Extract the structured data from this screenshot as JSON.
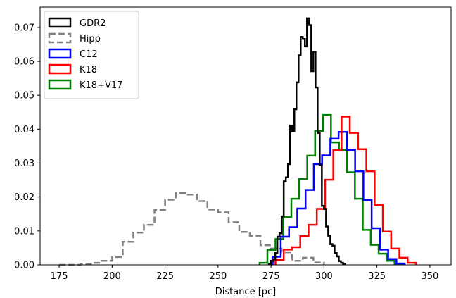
{
  "chart_data": {
    "type": "histogram",
    "xlabel": "Distance [pc]",
    "ylabel": "",
    "xlim": [
      166,
      360
    ],
    "ylim": [
      0,
      0.076
    ],
    "xticks": [
      175,
      200,
      225,
      250,
      275,
      300,
      325,
      350
    ],
    "yticks": [
      0.0,
      0.01,
      0.02,
      0.03,
      0.04,
      0.05,
      0.06,
      0.07
    ],
    "ytick_labels": [
      "0.00",
      "0.01",
      "0.02",
      "0.03",
      "0.04",
      "0.05",
      "0.06",
      "0.07"
    ],
    "legend_location": "upper-left",
    "grid": false,
    "series": [
      {
        "name": "Hipp",
        "color": "#808080",
        "dashed": true,
        "edges": [
          175,
          180,
          185,
          190,
          195,
          200,
          205,
          210,
          215,
          220,
          225,
          230,
          235,
          240,
          245,
          250,
          255,
          260,
          265,
          270,
          275,
          280,
          285,
          290,
          295,
          300
        ],
        "values": [
          0.0,
          0.0,
          0.0003,
          0.0006,
          0.0012,
          0.0023,
          0.0068,
          0.0095,
          0.0118,
          0.0162,
          0.0192,
          0.0212,
          0.0207,
          0.0188,
          0.0163,
          0.0155,
          0.0126,
          0.0097,
          0.0086,
          0.0058,
          0.0048,
          0.0037,
          0.0012,
          0.0021,
          0.0007
        ]
      },
      {
        "name": "K18+V17",
        "color": "#008000",
        "edges": [
          269.6,
          273.3,
          277.1,
          280.8,
          284.6,
          288.3,
          292.1,
          295.8,
          299.6,
          303.3,
          307.1,
          310.8,
          314.6,
          318.3,
          322.1,
          325.8,
          329.6,
          333.3,
          337.1
        ],
        "values": [
          0.0006,
          0.0044,
          0.0076,
          0.0141,
          0.0195,
          0.0253,
          0.0322,
          0.0395,
          0.0442,
          0.0361,
          0.0339,
          0.0273,
          0.0195,
          0.0103,
          0.0059,
          0.0033,
          0.0012,
          0.0004
        ]
      },
      {
        "name": "C12",
        "color": "#0000ff",
        "edges": [
          275.8,
          279.6,
          283.5,
          287.4,
          291.3,
          295.2,
          299.1,
          303.0,
          306.9,
          310.8,
          314.7,
          318.6,
          322.5,
          326.4,
          330.3,
          334.2,
          338.1
        ],
        "values": [
          0.0024,
          0.0083,
          0.0111,
          0.0166,
          0.0221,
          0.0297,
          0.0323,
          0.0372,
          0.0392,
          0.0339,
          0.0276,
          0.0191,
          0.0108,
          0.0045,
          0.0017,
          0.0004
        ]
      },
      {
        "name": "K18",
        "color": "#ff0000",
        "edges": [
          277.1,
          281.0,
          284.9,
          288.8,
          292.7,
          296.6,
          300.5,
          304.4,
          308.3,
          312.2,
          316.1,
          320.0,
          323.9,
          327.8,
          331.7,
          335.6,
          339.5,
          343.4
        ],
        "values": [
          0.0014,
          0.0045,
          0.0052,
          0.0085,
          0.0118,
          0.0165,
          0.0251,
          0.0338,
          0.0437,
          0.0389,
          0.0341,
          0.0276,
          0.0177,
          0.0098,
          0.0048,
          0.0021,
          0.0006
        ]
      },
      {
        "name": "GDR2",
        "color": "#000000",
        "edges": [
          274.0,
          275.0,
          276.0,
          277.0,
          278.0,
          279.0,
          280.0,
          281.0,
          282.0,
          283.0,
          284.0,
          285.0,
          286.0,
          287.0,
          288.0,
          289.0,
          290.0,
          291.0,
          292.0,
          293.0,
          294.0,
          295.0,
          296.0,
          297.0,
          298.0,
          299.0,
          300.0,
          301.0,
          302.0,
          303.0,
          304.0,
          305.0,
          306.0,
          307.0,
          308.0,
          309.0,
          310.0
        ],
        "values": [
          0.0003,
          0.0012,
          0.0016,
          0.0035,
          0.0083,
          0.0093,
          0.0143,
          0.0246,
          0.0258,
          0.0297,
          0.0411,
          0.0395,
          0.0459,
          0.0538,
          0.0618,
          0.0672,
          0.0666,
          0.0644,
          0.0727,
          0.0707,
          0.0571,
          0.0628,
          0.0523,
          0.0389,
          0.0294,
          0.0174,
          0.0165,
          0.0113,
          0.0086,
          0.0061,
          0.0056,
          0.0035,
          0.0025,
          0.0011,
          0.0006,
          0.0002
        ]
      }
    ],
    "legend_order": [
      "GDR2",
      "Hipp",
      "C12",
      "K18",
      "K18+V17"
    ]
  }
}
